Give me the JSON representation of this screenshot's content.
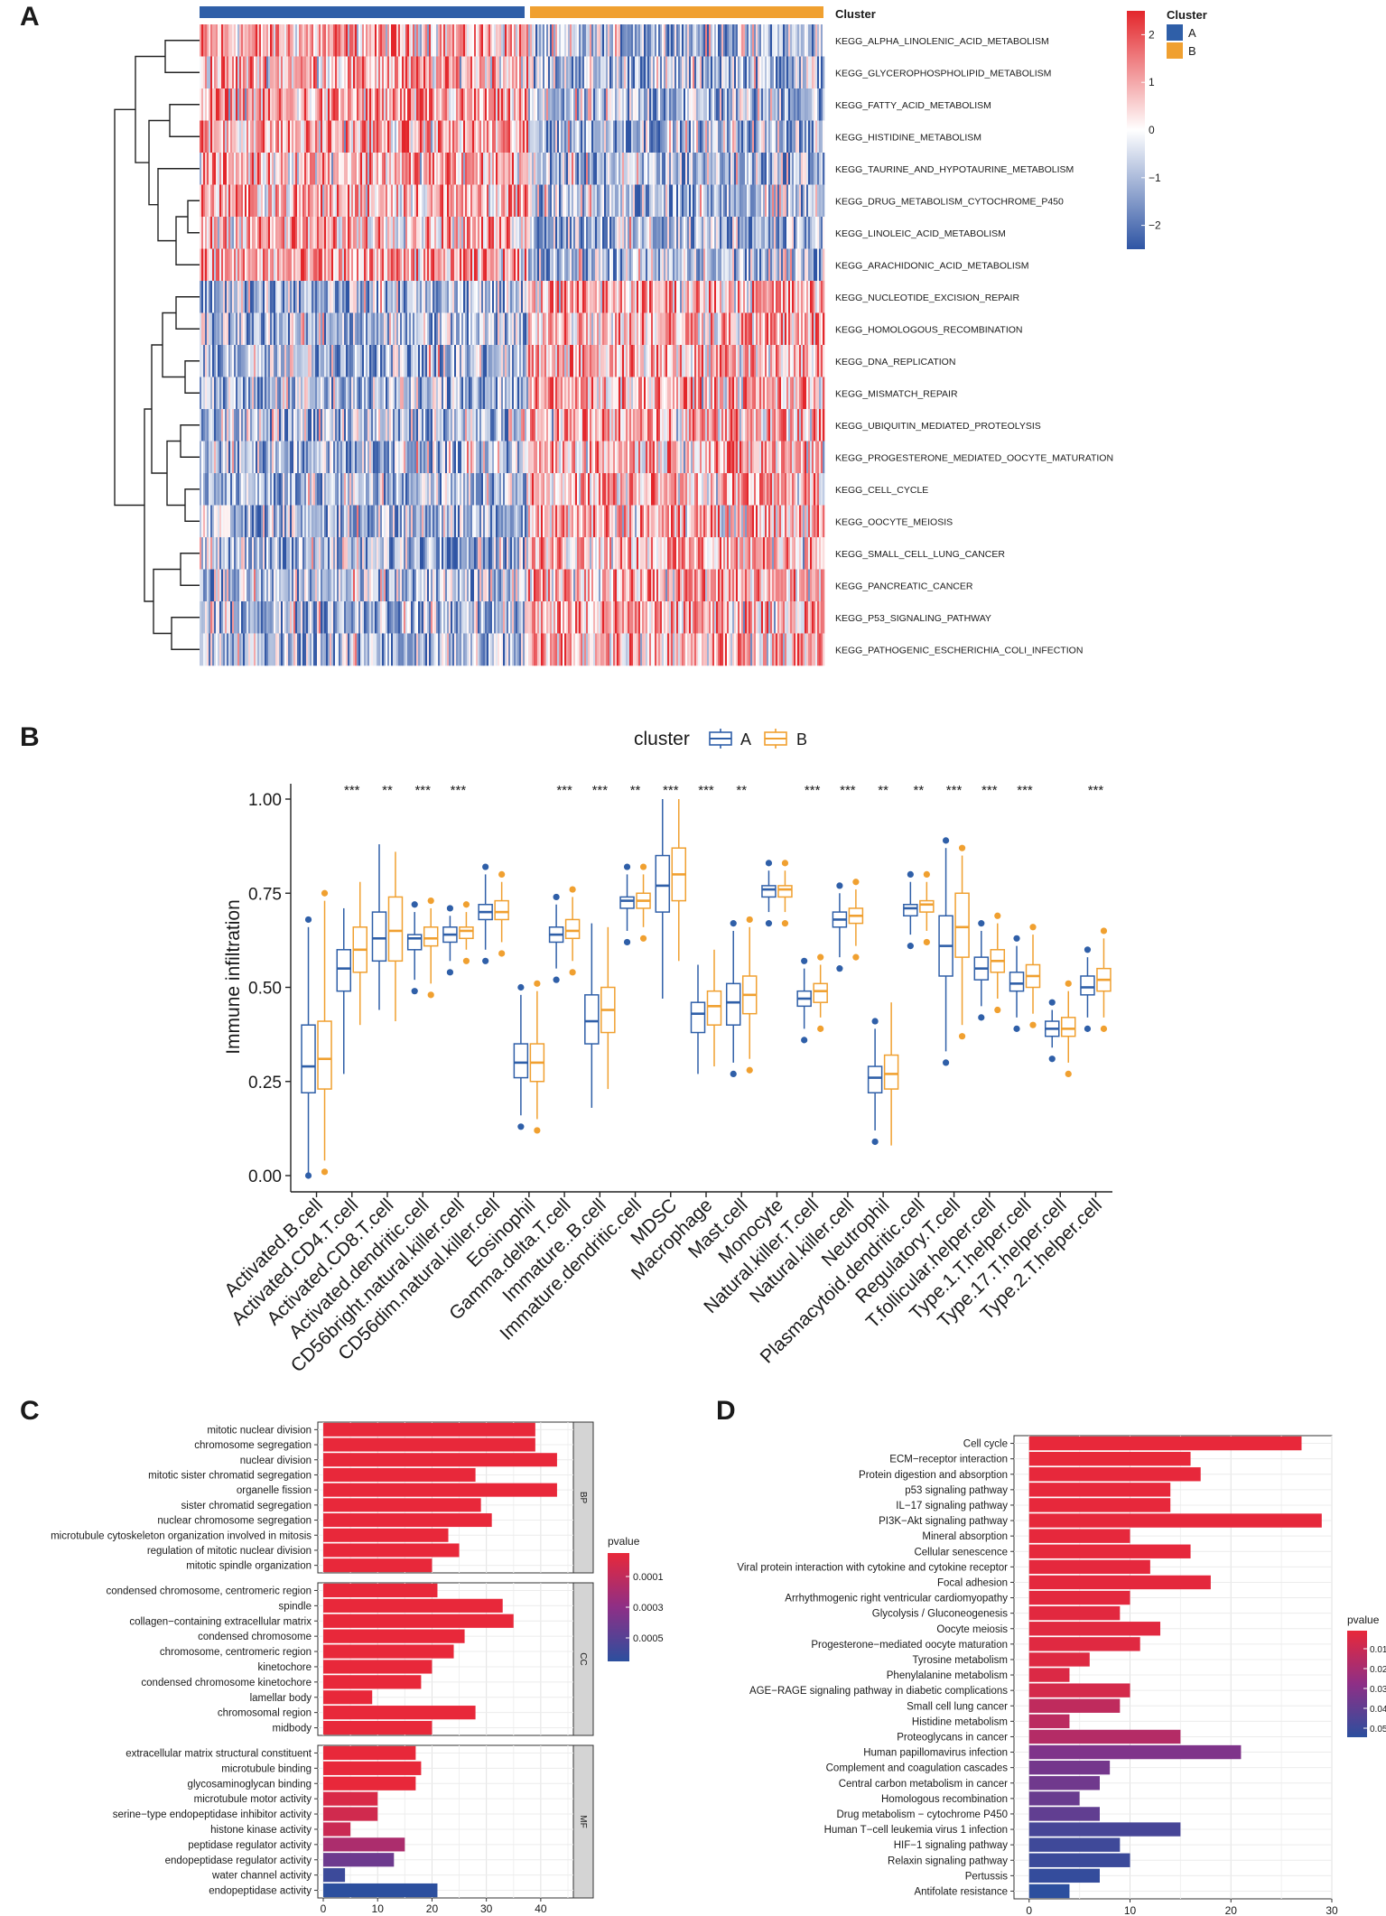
{
  "panels": {
    "a": "A",
    "b": "B",
    "c": "C",
    "d": "D"
  },
  "colors": {
    "cluster_a": "#2f5fa8",
    "cluster_b": "#f0a030",
    "heat_high": "#e3262b",
    "heat_mid": "#ffffff",
    "heat_low": "#2f55a4",
    "p_low": "#e8283a",
    "p_high": "#2c4f9e"
  },
  "chart_data": [
    {
      "panel": "A",
      "type": "heatmap",
      "annotation_title": "Cluster",
      "legend": {
        "title": "Cluster",
        "entries": [
          "A",
          "B"
        ]
      },
      "scale": {
        "ticks": [
          "2",
          "1",
          "0",
          "−1",
          "−2"
        ],
        "range": [
          -2.5,
          2.5
        ]
      },
      "rows": [
        {
          "label": "KEGG_ALPHA_LINOLENIC_ACID_METABOLISM",
          "cluster_A": "high",
          "cluster_B": "low"
        },
        {
          "label": "KEGG_GLYCEROPHOSPHOLIPID_METABOLISM",
          "cluster_A": "high",
          "cluster_B": "low"
        },
        {
          "label": "KEGG_FATTY_ACID_METABOLISM",
          "cluster_A": "high",
          "cluster_B": "low"
        },
        {
          "label": "KEGG_HISTIDINE_METABOLISM",
          "cluster_A": "high",
          "cluster_B": "low"
        },
        {
          "label": "KEGG_TAURINE_AND_HYPOTAURINE_METABOLISM",
          "cluster_A": "high",
          "cluster_B": "low"
        },
        {
          "label": "KEGG_DRUG_METABOLISM_CYTOCHROME_P450",
          "cluster_A": "high",
          "cluster_B": "low"
        },
        {
          "label": "KEGG_LINOLEIC_ACID_METABOLISM",
          "cluster_A": "high",
          "cluster_B": "low"
        },
        {
          "label": "KEGG_ARACHIDONIC_ACID_METABOLISM",
          "cluster_A": "high",
          "cluster_B": "low"
        },
        {
          "label": "KEGG_NUCLEOTIDE_EXCISION_REPAIR",
          "cluster_A": "low",
          "cluster_B": "high"
        },
        {
          "label": "KEGG_HOMOLOGOUS_RECOMBINATION",
          "cluster_A": "low",
          "cluster_B": "high"
        },
        {
          "label": "KEGG_DNA_REPLICATION",
          "cluster_A": "low",
          "cluster_B": "high"
        },
        {
          "label": "KEGG_MISMATCH_REPAIR",
          "cluster_A": "low",
          "cluster_B": "high"
        },
        {
          "label": "KEGG_UBIQUITIN_MEDIATED_PROTEOLYSIS",
          "cluster_A": "low",
          "cluster_B": "high"
        },
        {
          "label": "KEGG_PROGESTERONE_MEDIATED_OOCYTE_MATURATION",
          "cluster_A": "low",
          "cluster_B": "high"
        },
        {
          "label": "KEGG_CELL_CYCLE",
          "cluster_A": "low",
          "cluster_B": "high"
        },
        {
          "label": "KEGG_OOCYTE_MEIOSIS",
          "cluster_A": "low",
          "cluster_B": "high"
        },
        {
          "label": "KEGG_SMALL_CELL_LUNG_CANCER",
          "cluster_A": "low",
          "cluster_B": "high"
        },
        {
          "label": "KEGG_PANCREATIC_CANCER",
          "cluster_A": "low",
          "cluster_B": "high"
        },
        {
          "label": "KEGG_P53_SIGNALING_PATHWAY",
          "cluster_A": "low",
          "cluster_B": "high"
        },
        {
          "label": "KEGG_PATHOGENIC_ESCHERICHIA_COLI_INFECTION",
          "cluster_A": "low",
          "cluster_B": "high"
        }
      ]
    },
    {
      "panel": "B",
      "type": "boxplot",
      "legend_title": "cluster",
      "legend": [
        "A",
        "B"
      ],
      "ylabel": "Immune infiltration",
      "ylim": [
        0,
        1.05
      ],
      "yticks": [
        "0.00",
        "0.25",
        "0.50",
        "0.75",
        "1.00"
      ],
      "categories": [
        {
          "name": "Activated.B.cell",
          "sig": "",
          "A": [
            0.0,
            0.22,
            0.29,
            0.4,
            0.66
          ],
          "B": [
            0.04,
            0.23,
            0.31,
            0.41,
            0.73
          ]
        },
        {
          "name": "Activated.CD4.T.cell",
          "sig": "***",
          "A": [
            0.27,
            0.49,
            0.55,
            0.6,
            0.71
          ],
          "B": [
            0.4,
            0.54,
            0.6,
            0.66,
            0.78
          ]
        },
        {
          "name": "Activated.CD8.T.cell",
          "sig": "**",
          "A": [
            0.44,
            0.57,
            0.63,
            0.7,
            0.88
          ],
          "B": [
            0.41,
            0.57,
            0.65,
            0.74,
            0.86
          ]
        },
        {
          "name": "Activated.dendritic.cell",
          "sig": "***",
          "A": [
            0.52,
            0.6,
            0.63,
            0.64,
            0.7
          ],
          "B": [
            0.51,
            0.61,
            0.63,
            0.66,
            0.71
          ]
        },
        {
          "name": "CD56bright.natural.killer.cell",
          "sig": "***",
          "A": [
            0.57,
            0.62,
            0.64,
            0.66,
            0.69
          ],
          "B": [
            0.6,
            0.63,
            0.65,
            0.66,
            0.7
          ]
        },
        {
          "name": "CD56dim.natural.killer.cell",
          "sig": "",
          "A": [
            0.6,
            0.68,
            0.7,
            0.72,
            0.8
          ],
          "B": [
            0.62,
            0.68,
            0.7,
            0.73,
            0.78
          ]
        },
        {
          "name": "Eosinophil",
          "sig": "",
          "A": [
            0.16,
            0.26,
            0.3,
            0.35,
            0.48
          ],
          "B": [
            0.15,
            0.25,
            0.3,
            0.35,
            0.49
          ]
        },
        {
          "name": "Gamma.delta.T.cell",
          "sig": "***",
          "A": [
            0.55,
            0.62,
            0.64,
            0.66,
            0.72
          ],
          "B": [
            0.57,
            0.63,
            0.65,
            0.68,
            0.74
          ]
        },
        {
          "name": "Immature..B.cell",
          "sig": "***",
          "A": [
            0.18,
            0.35,
            0.41,
            0.48,
            0.67
          ],
          "B": [
            0.23,
            0.38,
            0.44,
            0.5,
            0.66
          ]
        },
        {
          "name": "Immature.dendritic.cell",
          "sig": "**",
          "A": [
            0.65,
            0.71,
            0.73,
            0.74,
            0.8
          ],
          "B": [
            0.66,
            0.71,
            0.73,
            0.75,
            0.8
          ]
        },
        {
          "name": "MDSC",
          "sig": "***",
          "A": [
            0.47,
            0.7,
            0.77,
            0.85,
            1.0
          ],
          "B": [
            0.57,
            0.73,
            0.8,
            0.87,
            1.0
          ]
        },
        {
          "name": "Macrophage",
          "sig": "***",
          "A": [
            0.27,
            0.38,
            0.43,
            0.46,
            0.56
          ],
          "B": [
            0.29,
            0.4,
            0.45,
            0.49,
            0.6
          ]
        },
        {
          "name": "Mast.cell",
          "sig": "**",
          "A": [
            0.3,
            0.4,
            0.46,
            0.51,
            0.65
          ],
          "B": [
            0.31,
            0.43,
            0.48,
            0.53,
            0.66
          ]
        },
        {
          "name": "Monocyte",
          "sig": "",
          "A": [
            0.7,
            0.74,
            0.76,
            0.77,
            0.81
          ],
          "B": [
            0.7,
            0.74,
            0.76,
            0.77,
            0.81
          ]
        },
        {
          "name": "Natural.killer.T.cell",
          "sig": "***",
          "A": [
            0.39,
            0.45,
            0.47,
            0.49,
            0.55
          ],
          "B": [
            0.42,
            0.46,
            0.49,
            0.51,
            0.56
          ]
        },
        {
          "name": "Natural.killer.cell",
          "sig": "***",
          "A": [
            0.58,
            0.66,
            0.68,
            0.7,
            0.75
          ],
          "B": [
            0.61,
            0.67,
            0.69,
            0.71,
            0.76
          ]
        },
        {
          "name": "Neutrophil",
          "sig": "**",
          "A": [
            0.12,
            0.22,
            0.26,
            0.29,
            0.39
          ],
          "B": [
            0.08,
            0.23,
            0.27,
            0.32,
            0.46
          ]
        },
        {
          "name": "Plasmacytoid.dendritic.cell",
          "sig": "**",
          "A": [
            0.64,
            0.69,
            0.71,
            0.72,
            0.78
          ],
          "B": [
            0.65,
            0.7,
            0.72,
            0.73,
            0.78
          ]
        },
        {
          "name": "Regulatory.T.cell",
          "sig": "***",
          "A": [
            0.33,
            0.53,
            0.61,
            0.69,
            0.87
          ],
          "B": [
            0.4,
            0.58,
            0.66,
            0.75,
            0.85
          ]
        },
        {
          "name": "T.follicular.helper.cell",
          "sig": "***",
          "A": [
            0.45,
            0.52,
            0.55,
            0.58,
            0.65
          ],
          "B": [
            0.47,
            0.54,
            0.57,
            0.6,
            0.67
          ]
        },
        {
          "name": "Type.1.T.helper.cell",
          "sig": "***",
          "A": [
            0.42,
            0.49,
            0.51,
            0.54,
            0.61
          ],
          "B": [
            0.43,
            0.5,
            0.53,
            0.56,
            0.64
          ]
        },
        {
          "name": "Type.17.T.helper.cell",
          "sig": "",
          "A": [
            0.34,
            0.37,
            0.39,
            0.41,
            0.44
          ],
          "B": [
            0.3,
            0.37,
            0.39,
            0.42,
            0.49
          ]
        },
        {
          "name": "Type.2.T.helper.cell",
          "sig": "***",
          "A": [
            0.42,
            0.48,
            0.5,
            0.53,
            0.58
          ],
          "B": [
            0.42,
            0.49,
            0.52,
            0.55,
            0.63
          ]
        }
      ]
    },
    {
      "panel": "C",
      "type": "bar",
      "orientation": "horizontal",
      "xticks": [
        "0",
        "10",
        "20",
        "30",
        "40"
      ],
      "xlim": [
        -1,
        46
      ],
      "legend": {
        "title": "pvalue",
        "ticks": [
          "0.0001",
          "0.0003",
          "0.0005"
        ]
      },
      "facets": [
        {
          "name": "BP",
          "terms": [
            {
              "label": "mitotic nuclear division",
              "count": 39,
              "pvalue": 1e-09
            },
            {
              "label": "chromosome segregation",
              "count": 39,
              "pvalue": 1e-09
            },
            {
              "label": "nuclear division",
              "count": 43,
              "pvalue": 1e-09
            },
            {
              "label": "mitotic sister chromatid segregation",
              "count": 28,
              "pvalue": 1e-09
            },
            {
              "label": "organelle fission",
              "count": 43,
              "pvalue": 1e-09
            },
            {
              "label": "sister chromatid segregation",
              "count": 29,
              "pvalue": 1e-09
            },
            {
              "label": "nuclear chromosome segregation",
              "count": 31,
              "pvalue": 1e-09
            },
            {
              "label": "microtubule cytoskeleton organization involved in mitosis",
              "count": 23,
              "pvalue": 1e-09
            },
            {
              "label": "regulation of mitotic nuclear division",
              "count": 25,
              "pvalue": 1e-09
            },
            {
              "label": "mitotic spindle organization",
              "count": 20,
              "pvalue": 1e-09
            }
          ]
        },
        {
          "name": "CC",
          "terms": [
            {
              "label": "condensed chromosome, centromeric region",
              "count": 21,
              "pvalue": 1e-09
            },
            {
              "label": "spindle",
              "count": 33,
              "pvalue": 1e-09
            },
            {
              "label": "collagen−containing extracellular matrix",
              "count": 35,
              "pvalue": 1e-09
            },
            {
              "label": "condensed chromosome",
              "count": 26,
              "pvalue": 1e-09
            },
            {
              "label": "chromosome, centromeric region",
              "count": 24,
              "pvalue": 1e-09
            },
            {
              "label": "kinetochore",
              "count": 20,
              "pvalue": 1e-09
            },
            {
              "label": "condensed chromosome kinetochore",
              "count": 18,
              "pvalue": 1e-09
            },
            {
              "label": "lamellar body",
              "count": 9,
              "pvalue": 1e-09
            },
            {
              "label": "chromosomal region",
              "count": 28,
              "pvalue": 1e-09
            },
            {
              "label": "midbody",
              "count": 20,
              "pvalue": 1e-09
            }
          ]
        },
        {
          "name": "MF",
          "terms": [
            {
              "label": "extracellular matrix structural constituent",
              "count": 17,
              "pvalue": 1e-09
            },
            {
              "label": "microtubule binding",
              "count": 18,
              "pvalue": 1e-09
            },
            {
              "label": "glycosaminoglycan binding",
              "count": 17,
              "pvalue": 1e-09
            },
            {
              "label": "microtubule motor activity",
              "count": 10,
              "pvalue": 5e-05
            },
            {
              "label": "serine−type endopeptidase inhibitor activity",
              "count": 10,
              "pvalue": 8e-05
            },
            {
              "label": "histone kinase activity",
              "count": 5,
              "pvalue": 0.0001
            },
            {
              "label": "peptidase regulator activity",
              "count": 15,
              "pvalue": 0.0002
            },
            {
              "label": "endopeptidase regulator activity",
              "count": 13,
              "pvalue": 0.0004
            },
            {
              "label": "water channel activity",
              "count": 4,
              "pvalue": 0.00055
            },
            {
              "label": "endopeptidase activity",
              "count": 21,
              "pvalue": 0.0006
            }
          ]
        }
      ]
    },
    {
      "panel": "D",
      "type": "bar",
      "orientation": "horizontal",
      "xticks": [
        "0",
        "10",
        "20",
        "30"
      ],
      "xlim": [
        -1.5,
        30
      ],
      "legend": {
        "title": "pvalue",
        "ticks": [
          "0.01",
          "0.02",
          "0.03",
          "0.04",
          "0.05"
        ]
      },
      "terms": [
        {
          "label": "Cell cycle",
          "count": 27,
          "pvalue": 0.0001
        },
        {
          "label": "ECM−receptor interaction",
          "count": 16,
          "pvalue": 0.0002
        },
        {
          "label": "Protein digestion and absorption",
          "count": 17,
          "pvalue": 0.0003
        },
        {
          "label": "p53 signaling pathway",
          "count": 14,
          "pvalue": 0.0004
        },
        {
          "label": "IL−17 signaling pathway",
          "count": 14,
          "pvalue": 0.0005
        },
        {
          "label": "PI3K−Akt signaling pathway",
          "count": 29,
          "pvalue": 0.0006
        },
        {
          "label": "Mineral absorption",
          "count": 10,
          "pvalue": 0.0007
        },
        {
          "label": "Cellular senescence",
          "count": 16,
          "pvalue": 0.0008
        },
        {
          "label": "Viral protein interaction with cytokine and cytokine receptor",
          "count": 12,
          "pvalue": 0.001
        },
        {
          "label": "Focal adhesion",
          "count": 18,
          "pvalue": 0.0012
        },
        {
          "label": "Arrhythmogenic right ventricular cardiomyopathy",
          "count": 10,
          "pvalue": 0.0015
        },
        {
          "label": "Glycolysis / Gluconeogenesis",
          "count": 9,
          "pvalue": 0.0018
        },
        {
          "label": "Oocyte meiosis",
          "count": 13,
          "pvalue": 0.002
        },
        {
          "label": "Progesterone−mediated oocyte maturation",
          "count": 11,
          "pvalue": 0.0025
        },
        {
          "label": "Tyrosine metabolism",
          "count": 6,
          "pvalue": 0.003
        },
        {
          "label": "Phenylalanine metabolism",
          "count": 4,
          "pvalue": 0.004
        },
        {
          "label": "AGE−RAGE signaling pathway in diabetic complications",
          "count": 10,
          "pvalue": 0.006
        },
        {
          "label": "Small cell lung cancer",
          "count": 9,
          "pvalue": 0.012
        },
        {
          "label": "Histidine metabolism",
          "count": 4,
          "pvalue": 0.013
        },
        {
          "label": "Proteoglycans in cancer",
          "count": 15,
          "pvalue": 0.015
        },
        {
          "label": "Human papillomavirus infection",
          "count": 21,
          "pvalue": 0.03
        },
        {
          "label": "Complement and coagulation cascades",
          "count": 8,
          "pvalue": 0.033
        },
        {
          "label": "Central carbon metabolism in cancer",
          "count": 7,
          "pvalue": 0.034
        },
        {
          "label": "Homologous recombination",
          "count": 5,
          "pvalue": 0.036
        },
        {
          "label": "Drug metabolism − cytochrome P450",
          "count": 7,
          "pvalue": 0.038
        },
        {
          "label": "Human T−cell leukemia virus 1 infection",
          "count": 15,
          "pvalue": 0.045
        },
        {
          "label": "HIF−1 signaling pathway",
          "count": 9,
          "pvalue": 0.047
        },
        {
          "label": "Relaxin signaling pathway",
          "count": 10,
          "pvalue": 0.048
        },
        {
          "label": "Pertussis",
          "count": 7,
          "pvalue": 0.05
        },
        {
          "label": "Antifolate resistance",
          "count": 4,
          "pvalue": 0.052
        }
      ]
    }
  ]
}
